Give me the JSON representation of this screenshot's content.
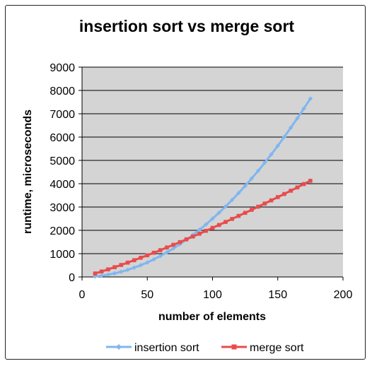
{
  "chart_data": {
    "type": "line",
    "title": "insertion sort vs merge sort",
    "xlabel": "number of elements",
    "ylabel": "runtime, microseconds",
    "xlim": [
      0,
      200
    ],
    "ylim": [
      0,
      9000
    ],
    "xticks": [
      0,
      50,
      100,
      150,
      200
    ],
    "yticks": [
      0,
      1000,
      2000,
      3000,
      4000,
      5000,
      6000,
      7000,
      8000,
      9000
    ],
    "grid": "horizontal",
    "legend_position": "bottom",
    "plot_background": "#d4d4d4",
    "x": [
      10,
      15,
      20,
      25,
      30,
      35,
      40,
      45,
      50,
      55,
      60,
      65,
      70,
      75,
      80,
      85,
      90,
      95,
      100,
      105,
      110,
      115,
      120,
      125,
      130,
      135,
      140,
      145,
      150,
      155,
      160,
      165,
      170,
      175
    ],
    "series": [
      {
        "name": "insertion sort",
        "color": "#7fb6ef",
        "marker": "diamond",
        "values": [
          25,
          55,
          100,
          155,
          225,
          305,
          400,
          505,
          620,
          755,
          900,
          1055,
          1225,
          1405,
          1600,
          1805,
          2025,
          2255,
          2500,
          2755,
          3025,
          3305,
          3600,
          3905,
          4225,
          4555,
          4900,
          5255,
          5625,
          6005,
          6400,
          6805,
          7225,
          7650
        ]
      },
      {
        "name": "merge sort",
        "color": "#e84c4c",
        "marker": "square",
        "values": [
          150,
          235,
          325,
          420,
          515,
          615,
          720,
          825,
          930,
          1040,
          1150,
          1265,
          1380,
          1495,
          1615,
          1735,
          1855,
          1980,
          2105,
          2230,
          2360,
          2490,
          2620,
          2750,
          2880,
          3015,
          3150,
          3285,
          3425,
          3560,
          3700,
          3840,
          3985,
          4125
        ]
      }
    ]
  }
}
